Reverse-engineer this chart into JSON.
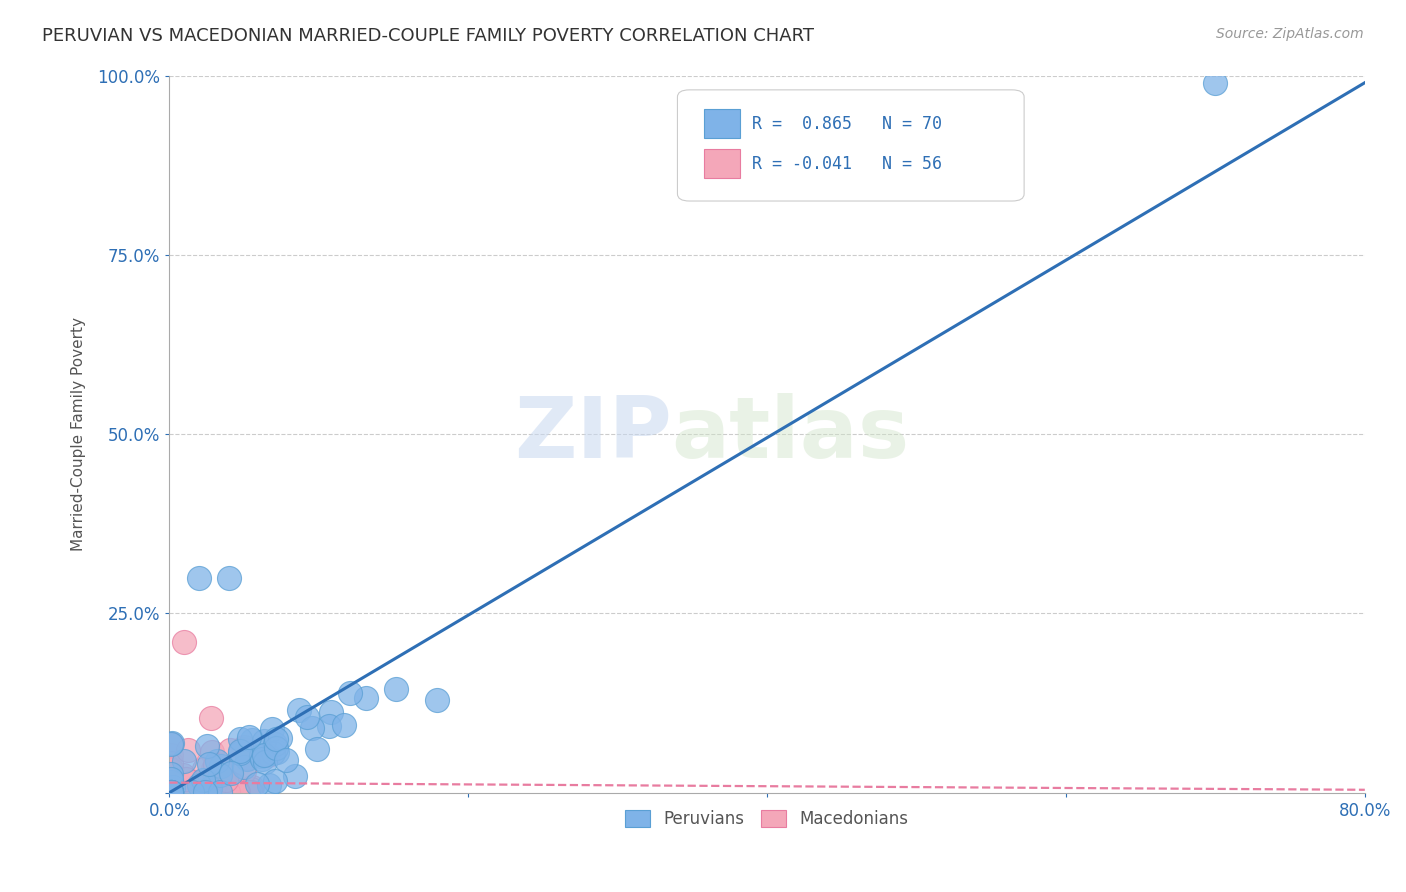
{
  "title": "PERUVIAN VS MACEDONIAN MARRIED-COUPLE FAMILY POVERTY CORRELATION CHART",
  "source": "Source: ZipAtlas.com",
  "ylabel": "Married-Couple Family Poverty",
  "xlim": [
    0.0,
    0.8
  ],
  "ylim": [
    0.0,
    1.0
  ],
  "peruvian_color": "#7fb3e8",
  "macedonian_color": "#f4a7b9",
  "trend_peruvian_color": "#2e6fb5",
  "trend_macedonian_color": "#e87ca0",
  "R_peruvian": 0.865,
  "N_peruvian": 70,
  "R_macedonian": -0.041,
  "N_macedonian": 56,
  "watermark_zip": "ZIP",
  "watermark_atlas": "atlas",
  "background_color": "#ffffff",
  "grid_color": "#cccccc",
  "title_color": "#333333",
  "axis_color": "#2e6fb5"
}
